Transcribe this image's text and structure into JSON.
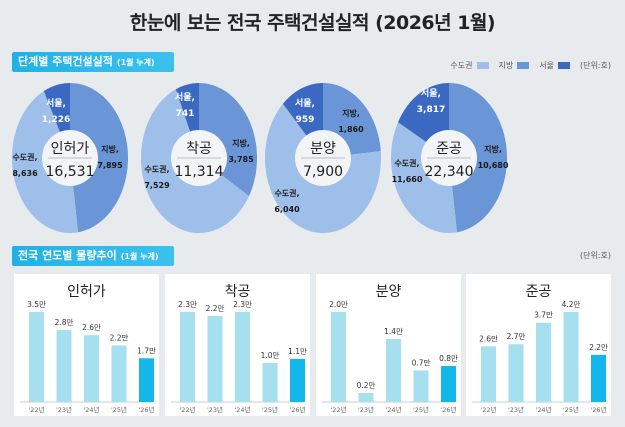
{
  "title": "한눈에 보는 전국 주택건설실적 (2026년 1월)",
  "section1": {
    "label": "단계별 주택건설실적",
    "sub": "(1월 누계)"
  },
  "section2": {
    "label": "전국 연도별 물량추이",
    "sub": "(1월 누계)"
  },
  "legend": {
    "items": [
      {
        "label": "수도권",
        "color": "#9dbfea"
      },
      {
        "label": "지방",
        "color": "#6a95d6"
      },
      {
        "label": "서울",
        "color": "#3b69c2"
      }
    ],
    "unit": "(단위:호)"
  },
  "unit2": "(단위:호)",
  "chart_data": [
    {
      "type": "pie",
      "donut": true,
      "title": "인허가",
      "total": "16,531",
      "slices": [
        {
          "label": "지방,",
          "value": 7895,
          "text": "7,895"
        },
        {
          "label": "수도권,",
          "value": 8636,
          "text": "8,636"
        },
        {
          "label": "서울,",
          "value": 1226,
          "text": "1,226",
          "subset_of": "수도권"
        }
      ]
    },
    {
      "type": "pie",
      "donut": true,
      "title": "착공",
      "total": "11,314",
      "slices": [
        {
          "label": "지방,",
          "value": 3785,
          "text": "3,785"
        },
        {
          "label": "수도권,",
          "value": 7529,
          "text": "7,529"
        },
        {
          "label": "서울,",
          "value": 741,
          "text": "741",
          "subset_of": "수도권"
        }
      ]
    },
    {
      "type": "pie",
      "donut": true,
      "title": "분양",
      "total": "7,900",
      "slices": [
        {
          "label": "지방,",
          "value": 1860,
          "text": "1,860"
        },
        {
          "label": "수도권,",
          "value": 6040,
          "text": "6,040"
        },
        {
          "label": "서울,",
          "value": 959,
          "text": "959",
          "subset_of": "수도권"
        }
      ]
    },
    {
      "type": "pie",
      "donut": true,
      "title": "준공",
      "total": "22,340",
      "slices": [
        {
          "label": "지방,",
          "value": 10680,
          "text": "10,680"
        },
        {
          "label": "수도권,",
          "value": 11660,
          "text": "11,660"
        },
        {
          "label": "서울,",
          "value": 3817,
          "text": "3,817",
          "subset_of": "수도권"
        }
      ]
    },
    {
      "type": "bar",
      "title": "인허가",
      "categories": [
        "'22년",
        "'23년",
        "'24년",
        "'25년",
        "'26년"
      ],
      "values": [
        3.5,
        2.8,
        2.6,
        2.2,
        1.7
      ],
      "labels": [
        "3.5만",
        "2.8만",
        "2.6만",
        "2.2만",
        "1.7만"
      ],
      "bar_color": "#a6e0ef",
      "highlight_color": "#14b7ea"
    },
    {
      "type": "bar",
      "title": "착공",
      "categories": [
        "'22년",
        "'23년",
        "'24년",
        "'25년",
        "'26년"
      ],
      "values": [
        2.3,
        2.2,
        2.3,
        1.0,
        1.1
      ],
      "labels": [
        "2.3만",
        "2.2만",
        "2.3만",
        "1.0만",
        "1.1만"
      ],
      "bar_color": "#a6e0ef",
      "highlight_color": "#14b7ea"
    },
    {
      "type": "bar",
      "title": "분양",
      "categories": [
        "'22년",
        "'23년",
        "'24년",
        "'25년",
        "'26년"
      ],
      "values": [
        2.0,
        0.2,
        1.4,
        0.7,
        0.8
      ],
      "labels": [
        "2.0만",
        "0.2만",
        "1.4만",
        "0.7만",
        "0.8만"
      ],
      "bar_color": "#a6e0ef",
      "highlight_color": "#14b7ea"
    },
    {
      "type": "bar",
      "title": "준공",
      "categories": [
        "'22년",
        "'23년",
        "'24년",
        "'25년",
        "'26년"
      ],
      "values": [
        2.6,
        2.7,
        3.7,
        4.2,
        2.2
      ],
      "labels": [
        "2.6만",
        "2.7만",
        "3.7만",
        "4.2만",
        "2.2만"
      ],
      "bar_color": "#a6e0ef",
      "highlight_color": "#14b7ea"
    }
  ]
}
